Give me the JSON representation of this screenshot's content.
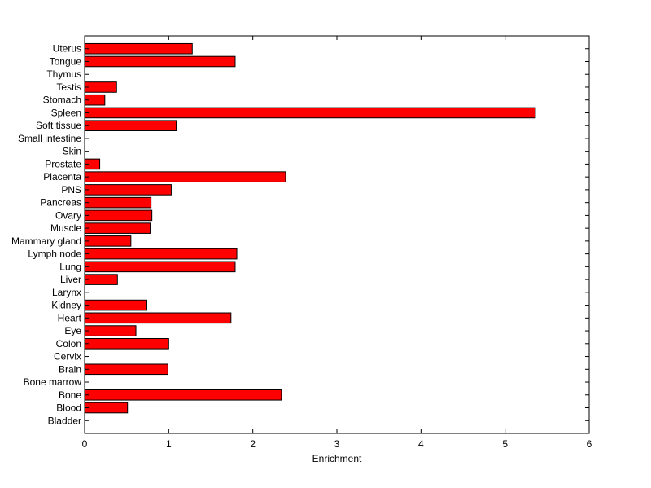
{
  "chart_data": {
    "type": "bar",
    "orientation": "horizontal",
    "categories": [
      "Bladder",
      "Blood",
      "Bone",
      "Bone marrow",
      "Brain",
      "Cervix",
      "Colon",
      "Eye",
      "Heart",
      "Kidney",
      "Larynx",
      "Liver",
      "Lung",
      "Lymph node",
      "Mammary gland",
      "Muscle",
      "Ovary",
      "Pancreas",
      "PNS",
      "Placenta",
      "Prostate",
      "Skin",
      "Small intestine",
      "Soft tissue",
      "Spleen",
      "Stomach",
      "Testis",
      "Thymus",
      "Tongue",
      "Uterus"
    ],
    "values": [
      0,
      0.51,
      2.34,
      0,
      0.99,
      0,
      1.0,
      0.61,
      1.74,
      0.74,
      0,
      0.39,
      1.79,
      1.81,
      0.55,
      0.78,
      0.8,
      0.79,
      1.03,
      2.39,
      0.18,
      0,
      0,
      1.09,
      5.36,
      0.24,
      0.38,
      0,
      1.79,
      1.28
    ],
    "xlabel": "Enrichment",
    "ylabel": "",
    "title": "",
    "xlim": [
      0,
      6
    ],
    "xticks": [
      "0",
      "1",
      "2",
      "3",
      "4",
      "5",
      "6"
    ],
    "bar_color": "#ff0000",
    "grid": false
  }
}
